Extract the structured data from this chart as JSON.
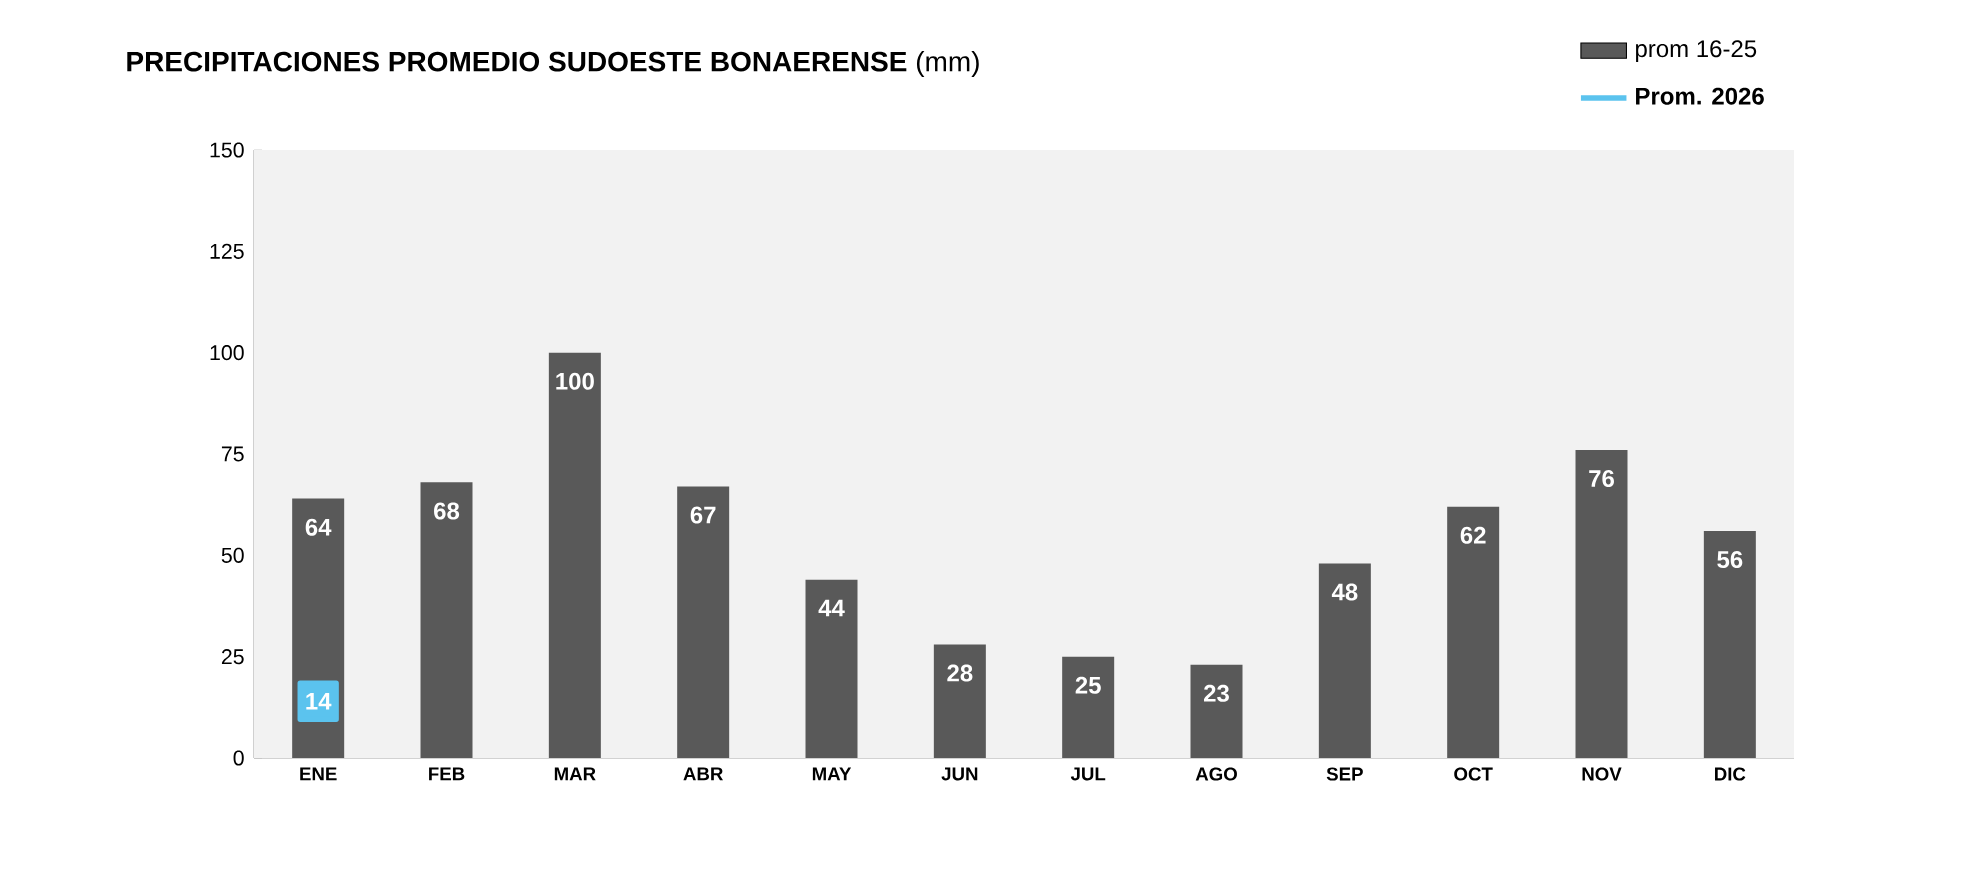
{
  "chart_data": {
    "type": "bar",
    "title": "**PRECIPITACIONES PROMEDIO SUDOESTE BONAERENSE** (mm)",
    "categories": [
      "ENE",
      "FEB",
      "MAR",
      "ABR",
      "MAY",
      "JUN",
      "JUL",
      "AGO",
      "SEP",
      "OCT",
      "NOV",
      "DIC"
    ],
    "series": [
      {
        "name": "prom 16-25",
        "color": "#595959",
        "values": [
          64,
          68,
          100,
          67,
          44,
          28,
          25,
          23,
          48,
          62,
          76,
          56
        ],
        "value_labels": [
          "64",
          "68",
          "100",
          "67",
          "44",
          "28",
          "25",
          "23",
          "48",
          "62",
          "76",
          "56"
        ]
      },
      {
        "name": "Prom. 2026",
        "type": "line",
        "marker": "square",
        "color": "#5bc3ee",
        "values": [
          14,
          null,
          null,
          null,
          null,
          null,
          null,
          null,
          null,
          null,
          null,
          null
        ],
        "value_labels": [
          "14",
          null,
          null,
          null,
          null,
          null,
          null,
          null,
          null,
          null,
          null,
          null
        ]
      }
    ],
    "ylim": [
      0,
      150
    ],
    "yticks": [
      0,
      25,
      50,
      75,
      100,
      125,
      150
    ],
    "grid": false,
    "legend": "top right"
  }
}
